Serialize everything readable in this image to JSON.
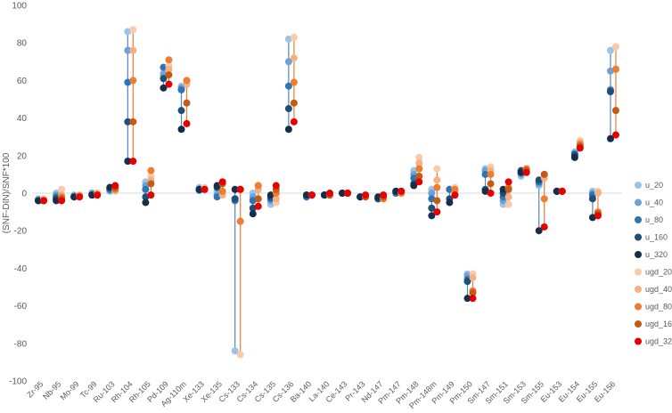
{
  "chart_data": {
    "type": "scatter",
    "ylabel": "(SNF-DIN)/SNF*100",
    "ylim": [
      -100,
      100
    ],
    "yticks": [
      100,
      80,
      60,
      40,
      20,
      0,
      -20,
      -40,
      -60,
      -80,
      -100
    ],
    "grid": false,
    "legend_position": "right",
    "categories": [
      "Zr-95",
      "Nb-95",
      "Mo-99",
      "Tc-99",
      "Ru-103",
      "Rh-104",
      "Rh-105",
      "Pd-109",
      "Ag-110m",
      "Xe-133",
      "Xe-135",
      "Cs-133",
      "Cs-134",
      "Cs-135",
      "Cs-136",
      "Ba-140",
      "La-140",
      "Ce-143",
      "Pr-143",
      "Nd-147",
      "Pm-147",
      "Pm-148",
      "Pm-148m",
      "Pm-149",
      "Pm-150",
      "Sm-147",
      "Sm-151",
      "Sm-153",
      "Sm-155",
      "Eu-153",
      "Eu-154",
      "Eu-155",
      "Eu-156"
    ],
    "series": [
      {
        "name": "u_20",
        "color": "#9DC3E6",
        "values": [
          -3,
          0,
          -1,
          0,
          1,
          86,
          6,
          64,
          57,
          3,
          1,
          -84,
          0,
          -6,
          82,
          -2,
          -1,
          0,
          -2,
          -3,
          0,
          12,
          2,
          2,
          -43,
          13,
          -6,
          9,
          4,
          1,
          22,
          1,
          76
        ]
      },
      {
        "name": "u_40",
        "color": "#6FA1D9",
        "values": [
          -3.5,
          -1,
          -1.5,
          0,
          1.5,
          76,
          4,
          63,
          56,
          2,
          -1,
          -3,
          -2,
          -4,
          70,
          -2,
          -1,
          0,
          -2,
          -3,
          0,
          10,
          0,
          2,
          -44,
          12,
          -4,
          10,
          5,
          1,
          21,
          0,
          65
        ]
      },
      {
        "name": "u_80",
        "color": "#2E75B6",
        "values": [
          -4,
          -2,
          -2,
          -1,
          2,
          59,
          2,
          67,
          55,
          1.5,
          -2,
          -4,
          -4,
          -3,
          57,
          -2,
          -1,
          0,
          -2,
          -3,
          0,
          8,
          -3,
          2,
          -46,
          10,
          -2,
          11,
          6,
          1,
          21,
          -1,
          55
        ]
      },
      {
        "name": "u_160",
        "color": "#1F4E79",
        "values": [
          -4,
          -3,
          -2,
          -1,
          3,
          38,
          -2,
          61,
          44,
          2,
          3,
          -3,
          -8,
          -2,
          45,
          -1,
          -1,
          0,
          -2,
          -3,
          1,
          5,
          -8,
          -3,
          -47,
          2,
          0,
          12,
          7,
          1,
          20,
          -3,
          54
        ]
      },
      {
        "name": "u_320",
        "color": "#172E4A",
        "values": [
          -4,
          -4,
          -2,
          -1,
          3,
          17,
          -5,
          56,
          34,
          2,
          4,
          2,
          -11,
          -1,
          34,
          -1,
          -1,
          0,
          -2,
          -2,
          1,
          4,
          -12,
          -5,
          -56,
          1,
          2,
          11,
          -20,
          1,
          19,
          -13,
          29
        ]
      },
      {
        "name": "ugd_20",
        "color": "#F8CBAD",
        "values": [
          -3,
          2,
          -1,
          0,
          1,
          87,
          9,
          68,
          60,
          3,
          1,
          -86,
          4,
          -5,
          83,
          -1,
          -1,
          0,
          -2,
          -3,
          0,
          19,
          13,
          3,
          -43,
          14,
          -6,
          12,
          9,
          1,
          28,
          1,
          78
        ]
      },
      {
        "name": "ugd_40",
        "color": "#F4B183",
        "values": [
          -3.5,
          -1,
          -1.5,
          0,
          1.5,
          76,
          7,
          66,
          58,
          2,
          -1,
          -15,
          2,
          -3,
          72,
          -1,
          -1,
          0,
          -2,
          -3,
          0,
          16,
          7,
          1,
          -45,
          12,
          -2,
          13,
          8,
          1,
          27,
          0,
          66
        ]
      },
      {
        "name": "ugd_80",
        "color": "#ED7D31",
        "values": [
          -4,
          -2,
          -1.5,
          -1,
          2,
          60,
          12,
          71,
          60,
          2,
          1,
          -15,
          4,
          0,
          59,
          -1,
          -1,
          0,
          -2,
          -3,
          0,
          13,
          3,
          2,
          -52,
          10,
          3,
          13,
          -3,
          1,
          26,
          -10,
          66
        ]
      },
      {
        "name": "ugd_160",
        "color": "#C55A11",
        "values": [
          -4,
          -3,
          -2,
          -1,
          3,
          38,
          5,
          63,
          48,
          2,
          5,
          2,
          -3,
          2,
          48,
          -1,
          -1,
          0,
          -2,
          -2,
          1,
          9,
          -4,
          -1,
          -53,
          5,
          2,
          12,
          10,
          1,
          25,
          -11,
          44
        ]
      },
      {
        "name": "ugd_320",
        "color": "#E60000",
        "values": [
          -4,
          -4,
          -2,
          -1,
          4,
          17,
          -1,
          58,
          37,
          2,
          6,
          2,
          -7,
          4,
          38,
          -1,
          0,
          0,
          -1,
          -1,
          1,
          6,
          -10,
          -1,
          -56,
          0,
          6,
          11,
          -18,
          1,
          24,
          -12,
          31
        ]
      }
    ]
  }
}
